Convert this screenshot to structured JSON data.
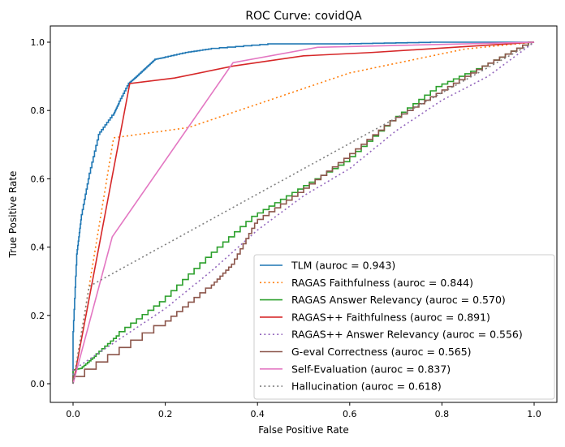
{
  "chart_data": {
    "type": "line",
    "title": "ROC Curve: covidQA",
    "xlabel": "False Positive Rate",
    "ylabel": "True Positive Rate",
    "xlim": [
      -0.05,
      1.05
    ],
    "ylim": [
      -0.05,
      1.05
    ],
    "xticks": [
      "0.0",
      "0.2",
      "0.4",
      "0.6",
      "0.8",
      "1.0"
    ],
    "yticks": [
      "0.0",
      "0.2",
      "0.4",
      "0.6",
      "0.8",
      "1.0"
    ],
    "grid": false,
    "legend_position": "bottom-right",
    "series": [
      {
        "name": "TLM (auroc = 0.943)",
        "color": "#1f77b4",
        "style": "solid",
        "step": true,
        "x": [
          0,
          0,
          0.009,
          0.018,
          0.035,
          0.058,
          0.088,
          0.1,
          0.123,
          0.14,
          0.16,
          0.18,
          0.2,
          0.25,
          0.3,
          0.44,
          0.6,
          0.8,
          1
        ],
        "y": [
          0,
          0.12,
          0.38,
          0.48,
          0.6,
          0.73,
          0.786,
          0.82,
          0.88,
          0.9,
          0.925,
          0.95,
          0.955,
          0.97,
          0.98,
          0.995,
          0.995,
          1,
          1
        ]
      },
      {
        "name": "RAGAS Faithfulness (auroc = 0.844)",
        "color": "#ff7f0e",
        "style": "dotted",
        "x": [
          0,
          0.088,
          0.25,
          0.6,
          0.85,
          1
        ],
        "y": [
          0,
          0.72,
          0.75,
          0.91,
          0.98,
          1
        ]
      },
      {
        "name": "RAGAS Answer Relevancy (auroc = 0.570)",
        "color": "#2ca02c",
        "style": "solid",
        "step": true,
        "x": [
          0,
          0,
          0.02,
          0.05,
          0.1,
          0.2,
          0.3,
          0.4,
          0.5,
          0.6,
          0.7,
          0.8,
          0.9,
          1
        ],
        "y": [
          0,
          0.04,
          0.045,
          0.08,
          0.14,
          0.24,
          0.37,
          0.49,
          0.57,
          0.65,
          0.77,
          0.87,
          0.93,
          1
        ]
      },
      {
        "name": "RAGAS++ Faithfulness (auroc = 0.891)",
        "color": "#d62728",
        "style": "solid",
        "x": [
          0,
          0.123,
          0.22,
          0.347,
          0.5,
          0.65,
          1
        ],
        "y": [
          0,
          0.879,
          0.895,
          0.93,
          0.96,
          0.97,
          1
        ]
      },
      {
        "name": "RAGAS++ Answer Relevancy (auroc = 0.556)",
        "color": "#9467bd",
        "style": "dotted",
        "x": [
          0,
          0,
          0.1,
          0.2,
          0.3,
          0.4,
          0.5,
          0.6,
          0.7,
          0.8,
          0.9,
          1
        ],
        "y": [
          0,
          0.04,
          0.13,
          0.22,
          0.33,
          0.45,
          0.55,
          0.63,
          0.74,
          0.83,
          0.9,
          1
        ]
      },
      {
        "name": "G-eval Correctness (auroc = 0.565)",
        "color": "#8c564b",
        "style": "solid",
        "step": true,
        "x": [
          0,
          0.2,
          0.3,
          0.35,
          0.4,
          0.5,
          0.6,
          0.7,
          0.8,
          0.9,
          1
        ],
        "y": [
          0,
          0.17,
          0.28,
          0.35,
          0.47,
          0.56,
          0.66,
          0.77,
          0.85,
          0.93,
          1
        ]
      },
      {
        "name": "Self-Evaluation (auroc = 0.837)",
        "color": "#e377c2",
        "style": "solid",
        "x": [
          0,
          0.085,
          0.347,
          0.53,
          1
        ],
        "y": [
          0,
          0.43,
          0.94,
          0.985,
          1
        ]
      },
      {
        "name": "Hallucination (auroc = 0.618)",
        "color": "#7f7f7f",
        "style": "dotted",
        "x": [
          0,
          0.035,
          1
        ],
        "y": [
          0,
          0.285,
          1
        ]
      }
    ]
  }
}
